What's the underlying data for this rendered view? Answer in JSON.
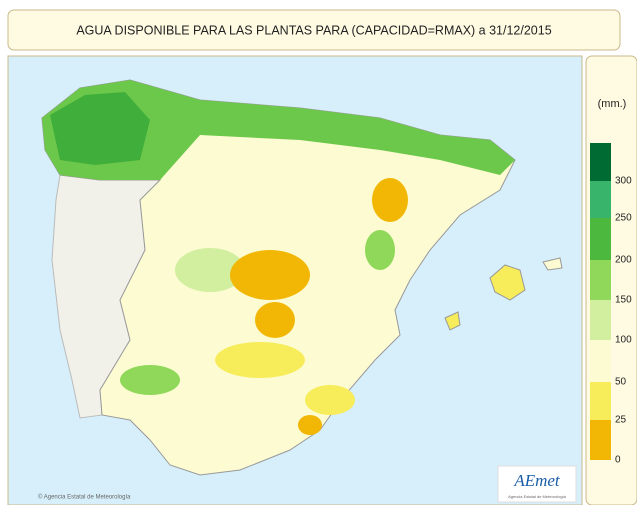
{
  "title": "AGUA DISPONIBLE PARA LAS PLANTAS PARA (CAPACIDAD=RMAX)  a 31/12/2015",
  "legend": {
    "unit": "(mm.)",
    "ticks": [
      "0",
      "25",
      "50",
      "100",
      "150",
      "200",
      "250",
      "300"
    ],
    "colors": [
      "#f2b705",
      "#f7ec5a",
      "#fdfbd2",
      "#d2efa0",
      "#8fd85a",
      "#4cb83e",
      "#38b56a",
      "#006b33"
    ]
  },
  "logo": "AEmet",
  "logo_sub": "Agencia Estatal de Meteorología",
  "credit": "© Agencia Estatal de Meteorología"
}
